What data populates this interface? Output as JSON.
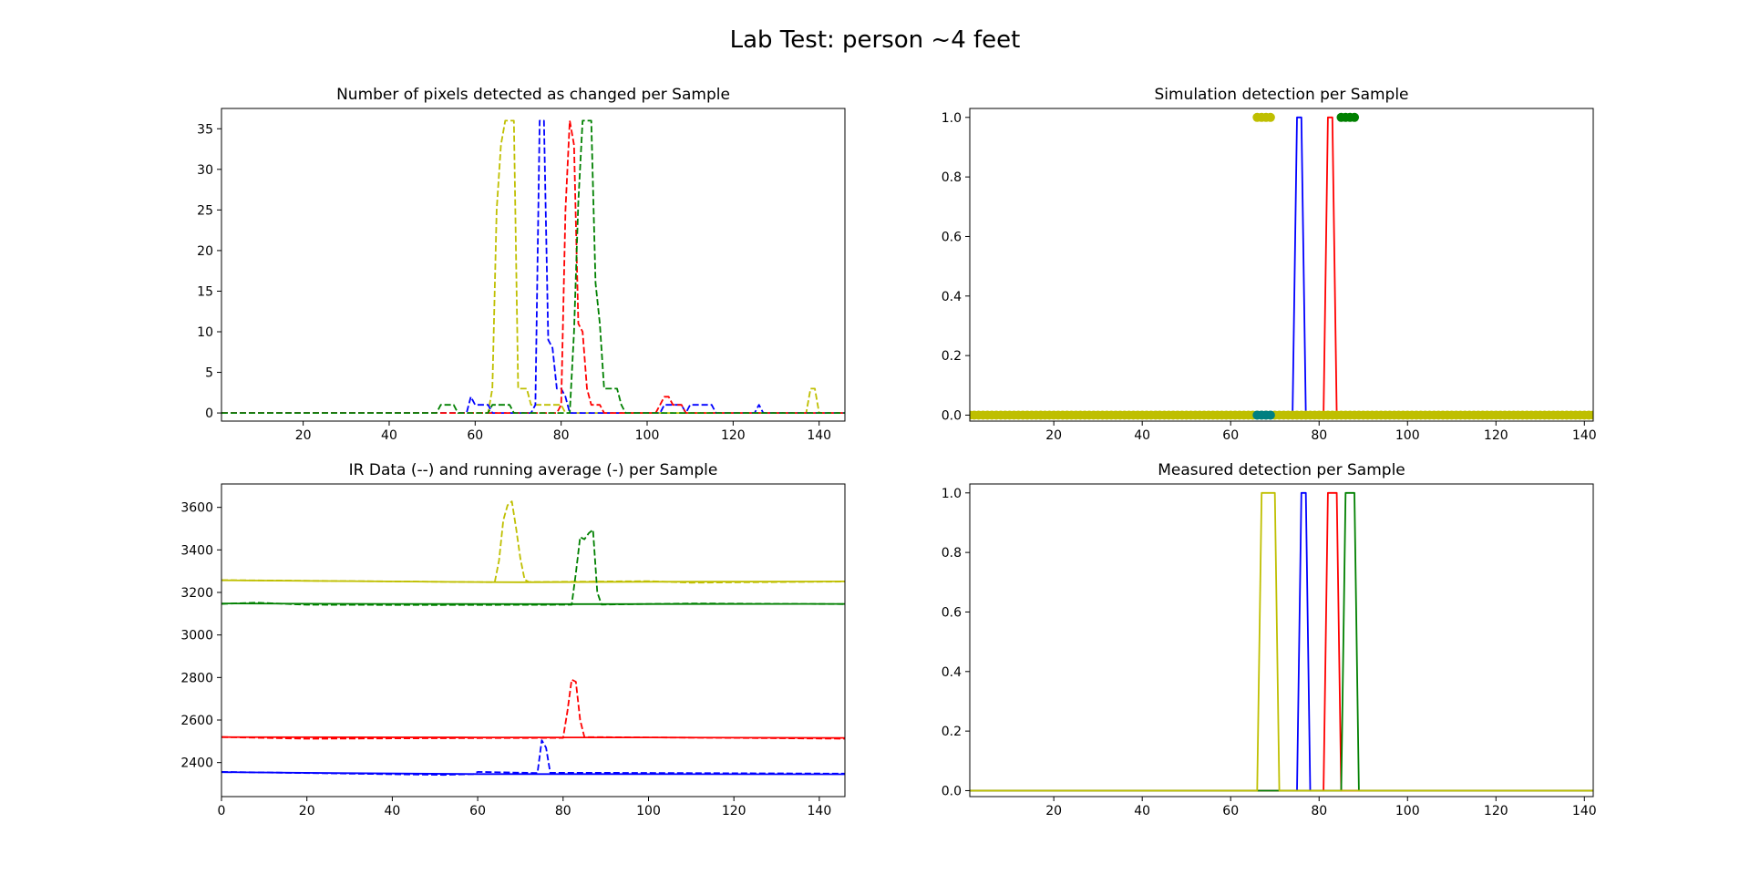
{
  "figure": {
    "suptitle": "Lab Test: person ~4 feet"
  },
  "chart_data": [
    {
      "id": "pixels",
      "type": "line",
      "title": "Number of pixels detected as changed per Sample",
      "xlabel": "",
      "ylabel": "",
      "xlim": [
        1,
        146
      ],
      "ylim": [
        -1,
        37.5
      ],
      "xticks": [
        20,
        40,
        60,
        80,
        100,
        120,
        140
      ],
      "yticks": [
        0,
        5,
        10,
        15,
        20,
        25,
        30,
        35
      ],
      "yfmt": 0,
      "series": [
        {
          "color": "#bfbf00",
          "dash": true,
          "points": [
            [
              1,
              0
            ],
            [
              63,
              0
            ],
            [
              64,
              3
            ],
            [
              65,
              25
            ],
            [
              66,
              33
            ],
            [
              67,
              36
            ],
            [
              69,
              36
            ],
            [
              70,
              3
            ],
            [
              72,
              3
            ],
            [
              73,
              1
            ],
            [
              80,
              1
            ],
            [
              81,
              0
            ],
            [
              137,
              0
            ],
            [
              138,
              3
            ],
            [
              139,
              3
            ],
            [
              140,
              0
            ],
            [
              146,
              0
            ]
          ]
        },
        {
          "color": "#0000ff",
          "dash": true,
          "points": [
            [
              1,
              0
            ],
            [
              58,
              0
            ],
            [
              59,
              2
            ],
            [
              60,
              1
            ],
            [
              63,
              1
            ],
            [
              64,
              0
            ],
            [
              73,
              0
            ],
            [
              74,
              1
            ],
            [
              75,
              36
            ],
            [
              76,
              36
            ],
            [
              77,
              9
            ],
            [
              78,
              8
            ],
            [
              79,
              3
            ],
            [
              80,
              3
            ],
            [
              81,
              2
            ],
            [
              82,
              0
            ],
            [
              103,
              0
            ],
            [
              104,
              1
            ],
            [
              108,
              1
            ],
            [
              109,
              0
            ],
            [
              110,
              1
            ],
            [
              115,
              1
            ],
            [
              116,
              0
            ],
            [
              125,
              0
            ],
            [
              126,
              1
            ],
            [
              127,
              0
            ],
            [
              146,
              0
            ]
          ]
        },
        {
          "color": "#ff0000",
          "dash": true,
          "points": [
            [
              1,
              0
            ],
            [
              79,
              0
            ],
            [
              80,
              1
            ],
            [
              81,
              25
            ],
            [
              82,
              36
            ],
            [
              83,
              33
            ],
            [
              84,
              11
            ],
            [
              85,
              10
            ],
            [
              86,
              3
            ],
            [
              87,
              1
            ],
            [
              89,
              1
            ],
            [
              90,
              0
            ],
            [
              102,
              0
            ],
            [
              103,
              1
            ],
            [
              104,
              2
            ],
            [
              105,
              2
            ],
            [
              106,
              1
            ],
            [
              108,
              1
            ],
            [
              109,
              0
            ],
            [
              146,
              0
            ]
          ]
        },
        {
          "color": "#008000",
          "dash": true,
          "points": [
            [
              1,
              0
            ],
            [
              51,
              0
            ],
            [
              52,
              1
            ],
            [
              55,
              1
            ],
            [
              56,
              0
            ],
            [
              63,
              0
            ],
            [
              64,
              1
            ],
            [
              68,
              1
            ],
            [
              69,
              0
            ],
            [
              82,
              0
            ],
            [
              83,
              10
            ],
            [
              84,
              26
            ],
            [
              85,
              36
            ],
            [
              87,
              36
            ],
            [
              88,
              16
            ],
            [
              89,
              11
            ],
            [
              90,
              3
            ],
            [
              93,
              3
            ],
            [
              94,
              1
            ],
            [
              95,
              0
            ],
            [
              146,
              0
            ]
          ]
        }
      ]
    },
    {
      "id": "sim",
      "type": "line",
      "title": "Simulation detection per Sample",
      "xlabel": "",
      "ylabel": "",
      "xlim": [
        1,
        142
      ],
      "ylim": [
        -0.02,
        1.03
      ],
      "xticks": [
        20,
        40,
        60,
        80,
        100,
        120,
        140
      ],
      "yticks": [
        0.0,
        0.2,
        0.4,
        0.6,
        0.8,
        1.0
      ],
      "yfmt": 1,
      "series": [
        {
          "color": "#0000ff",
          "dash": false,
          "points": [
            [
              1,
              0
            ],
            [
              74,
              0
            ],
            [
              75,
              1
            ],
            [
              76,
              1
            ],
            [
              77,
              0
            ],
            [
              142,
              0
            ]
          ]
        },
        {
          "color": "#ff0000",
          "dash": false,
          "points": [
            [
              1,
              0
            ],
            [
              81,
              0
            ],
            [
              82,
              1
            ],
            [
              83,
              1
            ],
            [
              84,
              0
            ],
            [
              142,
              0
            ]
          ]
        }
      ],
      "markers": [
        {
          "color": "#bfbf00",
          "y": 0,
          "x_from": 1,
          "x_to": 142
        },
        {
          "color": "#bfbf00",
          "y": 1,
          "x_from": 66,
          "x_to": 69
        },
        {
          "color": "#008000",
          "y": 1,
          "x_from": 85,
          "x_to": 88
        },
        {
          "color": "#008080",
          "y": 0,
          "x_from": 66,
          "x_to": 69
        }
      ]
    },
    {
      "id": "ir",
      "type": "line",
      "title": "IR Data (--) and running average (-) per Sample",
      "xlabel": "",
      "ylabel": "",
      "xlim": [
        0,
        146
      ],
      "ylim": [
        2240,
        3710
      ],
      "xticks": [
        0,
        20,
        40,
        60,
        80,
        100,
        120,
        140
      ],
      "yticks": [
        2400,
        2600,
        2800,
        3000,
        3200,
        3400,
        3600
      ],
      "yfmt": 0,
      "series": [
        {
          "color": "#bfbf00",
          "dash": false,
          "points": [
            [
              0,
              3257
            ],
            [
              30,
              3253
            ],
            [
              60,
              3249
            ],
            [
              70,
              3248
            ],
            [
              100,
              3250
            ],
            [
              146,
              3252
            ]
          ]
        },
        {
          "color": "#bfbf00",
          "dash": true,
          "points": [
            [
              0,
              3258
            ],
            [
              40,
              3252
            ],
            [
              64,
              3248
            ],
            [
              65,
              3350
            ],
            [
              66,
              3540
            ],
            [
              67,
              3610
            ],
            [
              68,
              3628
            ],
            [
              69,
              3500
            ],
            [
              70,
              3360
            ],
            [
              71,
              3260
            ],
            [
              72,
              3249
            ],
            [
              100,
              3253
            ],
            [
              110,
              3246
            ],
            [
              146,
              3251
            ]
          ]
        },
        {
          "color": "#008000",
          "dash": false,
          "points": [
            [
              0,
              3148
            ],
            [
              40,
              3146
            ],
            [
              80,
              3145
            ],
            [
              146,
              3146
            ]
          ]
        },
        {
          "color": "#008000",
          "dash": true,
          "points": [
            [
              0,
              3146
            ],
            [
              8,
              3152
            ],
            [
              20,
              3142
            ],
            [
              50,
              3141
            ],
            [
              82,
              3142
            ],
            [
              83,
              3290
            ],
            [
              84,
              3460
            ],
            [
              85,
              3450
            ],
            [
              86,
              3478
            ],
            [
              87,
              3495
            ],
            [
              88,
              3200
            ],
            [
              89,
              3143
            ],
            [
              110,
              3148
            ],
            [
              146,
              3145
            ]
          ]
        },
        {
          "color": "#ff0000",
          "dash": false,
          "points": [
            [
              0,
              2520
            ],
            [
              60,
              2518
            ],
            [
              100,
              2518
            ],
            [
              146,
              2516
            ]
          ]
        },
        {
          "color": "#ff0000",
          "dash": true,
          "points": [
            [
              0,
              2520
            ],
            [
              20,
              2512
            ],
            [
              60,
              2515
            ],
            [
              80,
              2516
            ],
            [
              81,
              2640
            ],
            [
              82,
              2790
            ],
            [
              83,
              2780
            ],
            [
              84,
              2600
            ],
            [
              85,
              2520
            ],
            [
              120,
              2516
            ],
            [
              146,
              2512
            ]
          ]
        },
        {
          "color": "#0000ff",
          "dash": false,
          "points": [
            [
              0,
              2355
            ],
            [
              30,
              2350
            ],
            [
              60,
              2346
            ],
            [
              100,
              2346
            ],
            [
              146,
              2345
            ]
          ]
        },
        {
          "color": "#0000ff",
          "dash": true,
          "points": [
            [
              0,
              2356
            ],
            [
              30,
              2348
            ],
            [
              52,
              2342
            ],
            [
              59,
              2346
            ],
            [
              60,
              2356
            ],
            [
              74,
              2351
            ],
            [
              75,
              2505
            ],
            [
              76,
              2470
            ],
            [
              77,
              2352
            ],
            [
              90,
              2352
            ],
            [
              146,
              2348
            ]
          ]
        }
      ]
    },
    {
      "id": "meas",
      "type": "line",
      "title": "Measured detection per Sample",
      "xlabel": "",
      "ylabel": "",
      "xlim": [
        1,
        142
      ],
      "ylim": [
        -0.02,
        1.03
      ],
      "xticks": [
        20,
        40,
        60,
        80,
        100,
        120,
        140
      ],
      "yticks": [
        0.0,
        0.2,
        0.4,
        0.6,
        0.8,
        1.0
      ],
      "yfmt": 1,
      "series": [
        {
          "color": "#0000ff",
          "dash": false,
          "points": [
            [
              1,
              0
            ],
            [
              75,
              0
            ],
            [
              76,
              1
            ],
            [
              77,
              1
            ],
            [
              78,
              0
            ],
            [
              142,
              0
            ]
          ]
        },
        {
          "color": "#ff0000",
          "dash": false,
          "points": [
            [
              1,
              0
            ],
            [
              81,
              0
            ],
            [
              82,
              1
            ],
            [
              84,
              1
            ],
            [
              85,
              0
            ],
            [
              142,
              0
            ]
          ]
        },
        {
          "color": "#008000",
          "dash": false,
          "points": [
            [
              1,
              0
            ],
            [
              85,
              0
            ],
            [
              86,
              1
            ],
            [
              88,
              1
            ],
            [
              89,
              0
            ],
            [
              142,
              0
            ]
          ]
        },
        {
          "color": "#bfbf00",
          "dash": false,
          "points": [
            [
              1,
              0
            ],
            [
              66,
              0
            ],
            [
              67,
              1
            ],
            [
              70,
              1
            ],
            [
              71,
              0
            ],
            [
              142,
              0
            ]
          ]
        }
      ]
    }
  ]
}
